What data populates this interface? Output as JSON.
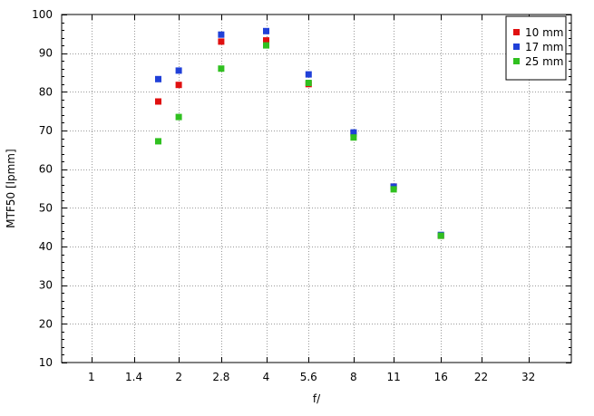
{
  "chart_data": {
    "type": "scatter",
    "xlabel": "f/",
    "ylabel": "MTF50 [lpmm]",
    "x_scale": "log2",
    "xlim": [
      0.79,
      45
    ],
    "ylim": [
      10,
      100
    ],
    "x_ticks": [
      "1",
      "1.4",
      "2",
      "2.8",
      "4",
      "5.6",
      "8",
      "11",
      "16",
      "22",
      "32"
    ],
    "x_tick_values": [
      1,
      1.4,
      2,
      2.8,
      4,
      5.6,
      8,
      11,
      16,
      22,
      32
    ],
    "y_ticks": [
      "10",
      "20",
      "30",
      "40",
      "50",
      "60",
      "70",
      "80",
      "90",
      "100"
    ],
    "y_tick_values": [
      10,
      20,
      30,
      40,
      50,
      60,
      70,
      80,
      90,
      100
    ],
    "grid": true,
    "legend_position": "top-right",
    "series": [
      {
        "name": "10 mm",
        "color": "#e01010",
        "x": [
          1.7,
          2.0,
          2.8,
          4.0,
          5.6,
          8.0,
          11.0,
          16.0
        ],
        "y": [
          77.5,
          81.8,
          93.0,
          93.3,
          82.0,
          69.2,
          55.5,
          42.8
        ]
      },
      {
        "name": "17 mm",
        "color": "#2040d8",
        "x": [
          1.7,
          2.0,
          2.8,
          4.0,
          5.6,
          8.0,
          11.0,
          16.0
        ],
        "y": [
          83.3,
          85.5,
          94.8,
          95.7,
          84.5,
          69.5,
          55.5,
          43.0
        ]
      },
      {
        "name": "25 mm",
        "color": "#30c020",
        "x": [
          1.7,
          2.0,
          2.8,
          4.0,
          5.6,
          8.0,
          11.0,
          16.0
        ],
        "y": [
          67.2,
          73.5,
          86.0,
          92.0,
          82.3,
          68.2,
          54.8,
          42.8
        ]
      }
    ]
  }
}
